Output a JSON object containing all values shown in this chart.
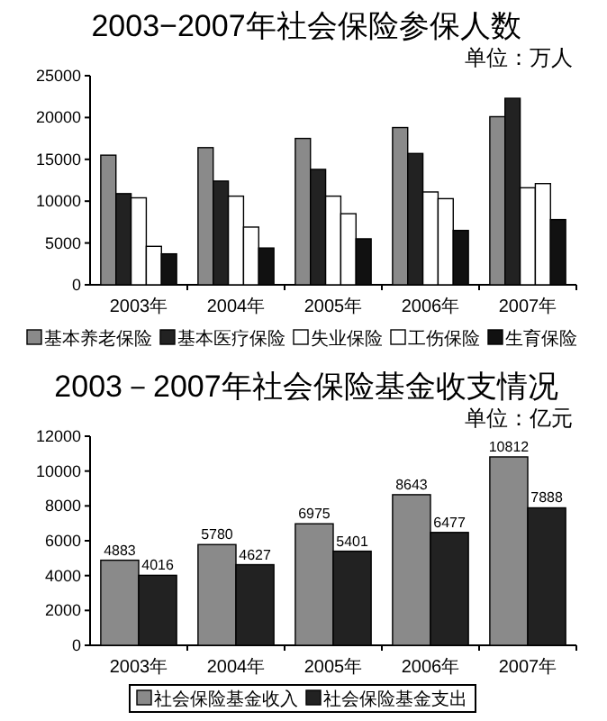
{
  "chart_data": [
    {
      "type": "bar",
      "title": "2003−2007年社会保险参保人数",
      "annotations": [
        "单位：万人"
      ],
      "categories": [
        "2003年",
        "2004年",
        "2005年",
        "2006年",
        "2007年"
      ],
      "ylim": [
        0,
        25000
      ],
      "yticks": [
        0,
        5000,
        10000,
        15000,
        20000,
        25000
      ],
      "grid": false,
      "legend": "bottom",
      "series": [
        {
          "name": "基本养老保险",
          "color": "#8a8a8a",
          "values": [
            15500,
            16400,
            17500,
            18800,
            20100
          ]
        },
        {
          "name": "基本医疗保险",
          "color": "#222222",
          "values": [
            10900,
            12400,
            13800,
            15700,
            22300
          ]
        },
        {
          "name": "失业保险",
          "color": "#ffffff",
          "values": [
            10400,
            10600,
            10600,
            11100,
            11600
          ]
        },
        {
          "name": "工伤保险",
          "color": "#ffffff",
          "values": [
            4600,
            6900,
            8500,
            10300,
            12100
          ]
        },
        {
          "name": "生育保险",
          "color": "#111111",
          "values": [
            3700,
            4400,
            5500,
            6500,
            7800
          ]
        }
      ]
    },
    {
      "type": "bar",
      "title": "2003－2007年社会保险基金收支情况",
      "annotations": [
        "单位：亿元"
      ],
      "categories": [
        "2003年",
        "2004年",
        "2005年",
        "2006年",
        "2007年"
      ],
      "ylim": [
        0,
        12000
      ],
      "yticks": [
        0,
        2000,
        4000,
        6000,
        8000,
        10000,
        12000
      ],
      "grid": false,
      "legend": "bottom",
      "data_labels": true,
      "series": [
        {
          "name": "社会保险基金收入",
          "color": "#8a8a8a",
          "values": [
            4883,
            5780,
            6975,
            8643,
            10812
          ]
        },
        {
          "name": "社会保险基金支出",
          "color": "#222222",
          "values": [
            4016,
            4627,
            5401,
            6477,
            7888
          ]
        }
      ]
    }
  ]
}
